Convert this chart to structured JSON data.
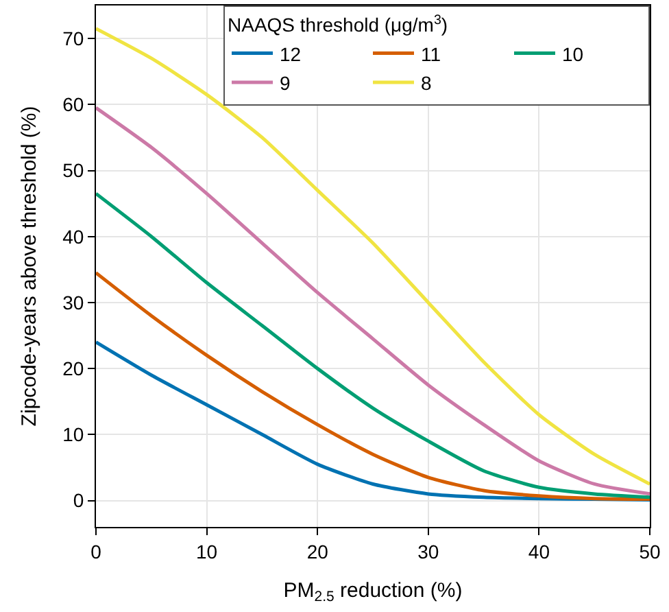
{
  "chart_data": {
    "type": "line",
    "xlabel": "PM$_{2.5}$ reduction (%)",
    "ylabel": "Zipcode-years above threshold (%)",
    "legend_title": "NAAQS threshold (μg/m$^{3}$)",
    "x": [
      0,
      5,
      10,
      15,
      20,
      25,
      30,
      35,
      40,
      45,
      50
    ],
    "series": [
      {
        "name": "12",
        "color": "#0072b2",
        "values": [
          24,
          19,
          14.5,
          10,
          5.5,
          2.5,
          1,
          0.5,
          0.3,
          0.2,
          0.1
        ]
      },
      {
        "name": "11",
        "color": "#d55e00",
        "values": [
          34.5,
          28,
          22,
          16.5,
          11.5,
          7,
          3.5,
          1.5,
          0.7,
          0.3,
          0.2
        ]
      },
      {
        "name": "10",
        "color": "#009e73",
        "values": [
          46.5,
          40,
          33,
          26.5,
          20,
          14,
          9,
          4.5,
          2,
          1,
          0.5
        ]
      },
      {
        "name": "9",
        "color": "#cc79a7",
        "values": [
          59.5,
          53.5,
          46.5,
          39,
          31.5,
          24.5,
          17.5,
          11.5,
          6,
          2.5,
          1
        ]
      },
      {
        "name": "8",
        "color": "#f0e442",
        "values": [
          71.5,
          67,
          61.5,
          55,
          47,
          39,
          30,
          21,
          13,
          7,
          2.5
        ]
      }
    ],
    "xlim": [
      0,
      50
    ],
    "xticks": [
      0,
      10,
      20,
      30,
      40,
      50
    ],
    "ylim": [
      -4,
      75
    ],
    "yticks": [
      0,
      10,
      20,
      30,
      40,
      50,
      60,
      70
    ],
    "grid": true,
    "legend": "top right",
    "marker": "none",
    "line_style": "solid"
  }
}
